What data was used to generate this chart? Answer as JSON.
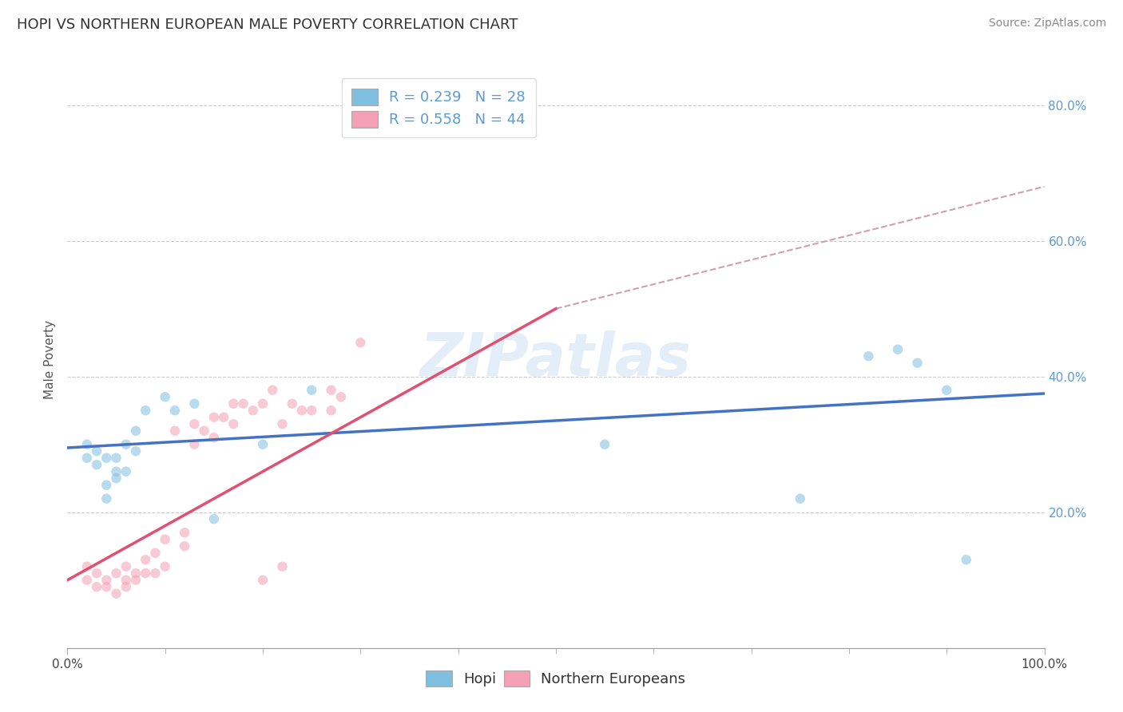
{
  "title": "HOPI VS NORTHERN EUROPEAN MALE POVERTY CORRELATION CHART",
  "source": "Source: ZipAtlas.com",
  "ylabel": "Male Poverty",
  "watermark": "ZIPatlas",
  "xlim": [
    0.0,
    1.0
  ],
  "ylim": [
    0.0,
    0.85
  ],
  "xtick_positions": [
    0.0,
    1.0
  ],
  "xtick_labels": [
    "0.0%",
    "100.0%"
  ],
  "ytick_values": [
    0.2,
    0.4,
    0.6,
    0.8
  ],
  "ytick_labels": [
    "20.0%",
    "40.0%",
    "60.0%",
    "80.0%"
  ],
  "hopi_R": 0.239,
  "hopi_N": 28,
  "ne_R": 0.558,
  "ne_N": 44,
  "hopi_color": "#7fbfdf",
  "ne_color": "#f4a0b5",
  "hopi_line_color": "#4472c4",
  "ne_line_color": "#e05070",
  "dashed_line_color": "#d0a0b0",
  "background_color": "#ffffff",
  "grid_color": "#cccccc",
  "hopi_x": [
    0.02,
    0.02,
    0.03,
    0.03,
    0.04,
    0.04,
    0.04,
    0.05,
    0.05,
    0.05,
    0.06,
    0.06,
    0.07,
    0.07,
    0.08,
    0.1,
    0.11,
    0.13,
    0.15,
    0.2,
    0.25,
    0.55,
    0.75,
    0.82,
    0.85,
    0.87,
    0.9,
    0.92
  ],
  "hopi_y": [
    0.28,
    0.3,
    0.27,
    0.29,
    0.22,
    0.24,
    0.28,
    0.26,
    0.28,
    0.25,
    0.26,
    0.3,
    0.29,
    0.32,
    0.35,
    0.37,
    0.35,
    0.36,
    0.19,
    0.3,
    0.38,
    0.3,
    0.22,
    0.43,
    0.44,
    0.42,
    0.38,
    0.13
  ],
  "ne_x": [
    0.02,
    0.02,
    0.03,
    0.03,
    0.04,
    0.04,
    0.05,
    0.05,
    0.06,
    0.06,
    0.06,
    0.07,
    0.07,
    0.08,
    0.08,
    0.09,
    0.09,
    0.1,
    0.1,
    0.11,
    0.12,
    0.12,
    0.13,
    0.13,
    0.14,
    0.15,
    0.15,
    0.16,
    0.17,
    0.17,
    0.18,
    0.19,
    0.2,
    0.2,
    0.21,
    0.22,
    0.23,
    0.24,
    0.25,
    0.27,
    0.27,
    0.28,
    0.3,
    0.22
  ],
  "ne_y": [
    0.1,
    0.12,
    0.09,
    0.11,
    0.09,
    0.1,
    0.08,
    0.11,
    0.09,
    0.1,
    0.12,
    0.1,
    0.11,
    0.11,
    0.13,
    0.11,
    0.14,
    0.12,
    0.16,
    0.32,
    0.15,
    0.17,
    0.3,
    0.33,
    0.32,
    0.31,
    0.34,
    0.34,
    0.36,
    0.33,
    0.36,
    0.35,
    0.1,
    0.36,
    0.38,
    0.33,
    0.36,
    0.35,
    0.35,
    0.38,
    0.35,
    0.37,
    0.45,
    0.12
  ],
  "title_fontsize": 13,
  "axis_label_fontsize": 11,
  "tick_fontsize": 11,
  "legend_fontsize": 13,
  "source_fontsize": 10,
  "marker_size": 9,
  "marker_alpha": 0.55,
  "legend_label_1": "R = 0.239   N = 28",
  "legend_label_2": "R = 0.558   N = 44",
  "bottom_legend_1": "Hopi",
  "bottom_legend_2": "Northern Europeans",
  "hopi_line_x0": 0.0,
  "hopi_line_x1": 1.0,
  "hopi_line_y0": 0.295,
  "hopi_line_y1": 0.375,
  "ne_line_solid_x0": 0.0,
  "ne_line_solid_x1": 0.5,
  "ne_line_y0": 0.1,
  "ne_line_y1": 0.5,
  "ne_line_dashed_x0": 0.5,
  "ne_line_dashed_x1": 1.0,
  "ne_line_dashed_y0": 0.5,
  "ne_line_dashed_y1": 0.68
}
